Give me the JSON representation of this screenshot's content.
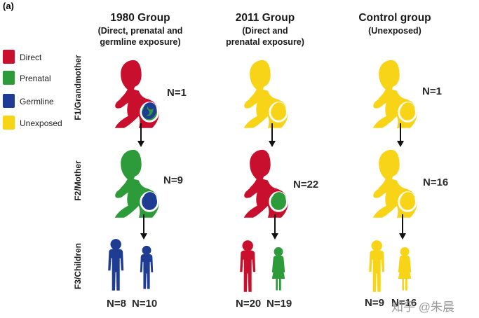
{
  "panel_label": "(a)",
  "colors": {
    "direct": "#c8102e",
    "prenatal": "#2e9b3a",
    "germline": "#1f3c93",
    "unexposed": "#f7d417",
    "fetus_bg": "#ffffff"
  },
  "legend": [
    {
      "key": "direct",
      "label": "Direct"
    },
    {
      "key": "prenatal",
      "label": "Prenatal"
    },
    {
      "key": "germline",
      "label": "Germline"
    },
    {
      "key": "unexposed",
      "label": "Unexposed"
    }
  ],
  "rows": [
    {
      "label": "F1/Grandmother"
    },
    {
      "label": "F2/Mother"
    },
    {
      "label": "F3/Children"
    }
  ],
  "groups": [
    {
      "title": "1980 Group",
      "subtitle_lines": [
        "(Direct, prenatal and",
        "germline exposure)"
      ],
      "grandmother": {
        "color": "direct",
        "fetus": "prenatal",
        "embryo": "germline",
        "n_label": "N=1"
      },
      "mother": {
        "color": "prenatal",
        "fetus": "germline",
        "embryo": "germline",
        "n_label": "N=9"
      },
      "children": [
        {
          "color": "germline",
          "n_label": "N=8",
          "type": "boy"
        },
        {
          "color": "germline",
          "n_label": "N=10",
          "type": "boy"
        }
      ]
    },
    {
      "title": "2011 Group",
      "subtitle_lines": [
        "(Direct and",
        "prenatal exposure)"
      ],
      "grandmother": {
        "color": "unexposed",
        "fetus": "unexposed",
        "embryo": "unexposed",
        "n_label": ""
      },
      "mother": {
        "color": "direct",
        "fetus": "prenatal",
        "embryo": "prenatal",
        "n_label": "N=22"
      },
      "children": [
        {
          "color": "direct",
          "n_label": "N=20",
          "type": "boy"
        },
        {
          "color": "prenatal",
          "n_label": "N=19",
          "type": "girl"
        }
      ]
    },
    {
      "title": "Control group",
      "subtitle_lines": [
        "(Unexposed)"
      ],
      "grandmother": {
        "color": "unexposed",
        "fetus": "unexposed",
        "embryo": "unexposed",
        "n_label": "N=1"
      },
      "mother": {
        "color": "unexposed",
        "fetus": "unexposed",
        "embryo": "unexposed",
        "n_label": "N=16"
      },
      "children": [
        {
          "color": "unexposed",
          "n_label": "N=9",
          "type": "boy"
        },
        {
          "color": "unexposed",
          "n_label": "N=16",
          "type": "girl"
        }
      ]
    }
  ],
  "watermark": "知乎 @朱晨"
}
